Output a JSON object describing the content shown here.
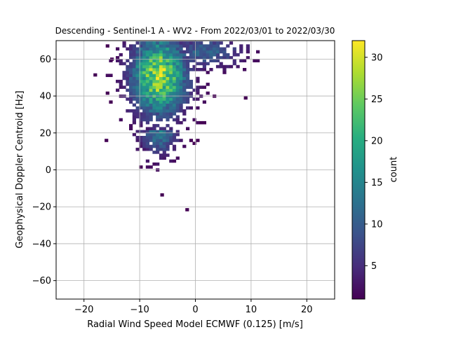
{
  "chart_data": {
    "type": "heatmap",
    "title": "Descending - Sentinel-1 A - WV2 - From 2022/03/01 to 2022/03/30",
    "xlabel": "Radial Wind Speed Model ECMWF (0.125) [m/s]",
    "ylabel": "Geophysical Doppler Centroid [Hz]",
    "xlim": [
      -25,
      25
    ],
    "ylim": [
      -70,
      70
    ],
    "x_ticks": [
      -20,
      -10,
      0,
      10,
      20
    ],
    "x_tick_labels": [
      "−20",
      "−10",
      "0",
      "10",
      "20"
    ],
    "y_ticks": [
      -60,
      -40,
      -20,
      0,
      20,
      40,
      60
    ],
    "y_tick_labels": [
      "−60",
      "−40",
      "−20",
      "0",
      "20",
      "40",
      "60"
    ],
    "grid": true,
    "colormap": "viridis",
    "colorbar": {
      "label": "count",
      "min": 1,
      "max": 32,
      "ticks": [
        5,
        10,
        15,
        20,
        25,
        30
      ],
      "tick_labels": [
        "5",
        "10",
        "15",
        "20",
        "25",
        "30"
      ]
    },
    "density": {
      "bin_width": 0.6,
      "bin_height": 1.6,
      "peak": {
        "x": -6.5,
        "y": 51,
        "count": 32
      },
      "core": {
        "x_range": [
          -10,
          2
        ],
        "y_range": [
          15,
          70
        ]
      },
      "tail": {
        "x_range": [
          -11,
          -3
        ],
        "y_range": [
          0,
          20
        ]
      },
      "outliers": [
        {
          "x": -6,
          "y": -13.5,
          "count": 1
        },
        {
          "x": -1.5,
          "y": -21.5,
          "count": 1
        },
        {
          "x": 9,
          "y": 39,
          "count": 1
        },
        {
          "x": -16,
          "y": 16,
          "count": 1
        },
        {
          "x": -18,
          "y": 51.5,
          "count": 1
        },
        {
          "x": -15,
          "y": 60,
          "count": 1
        }
      ]
    }
  }
}
